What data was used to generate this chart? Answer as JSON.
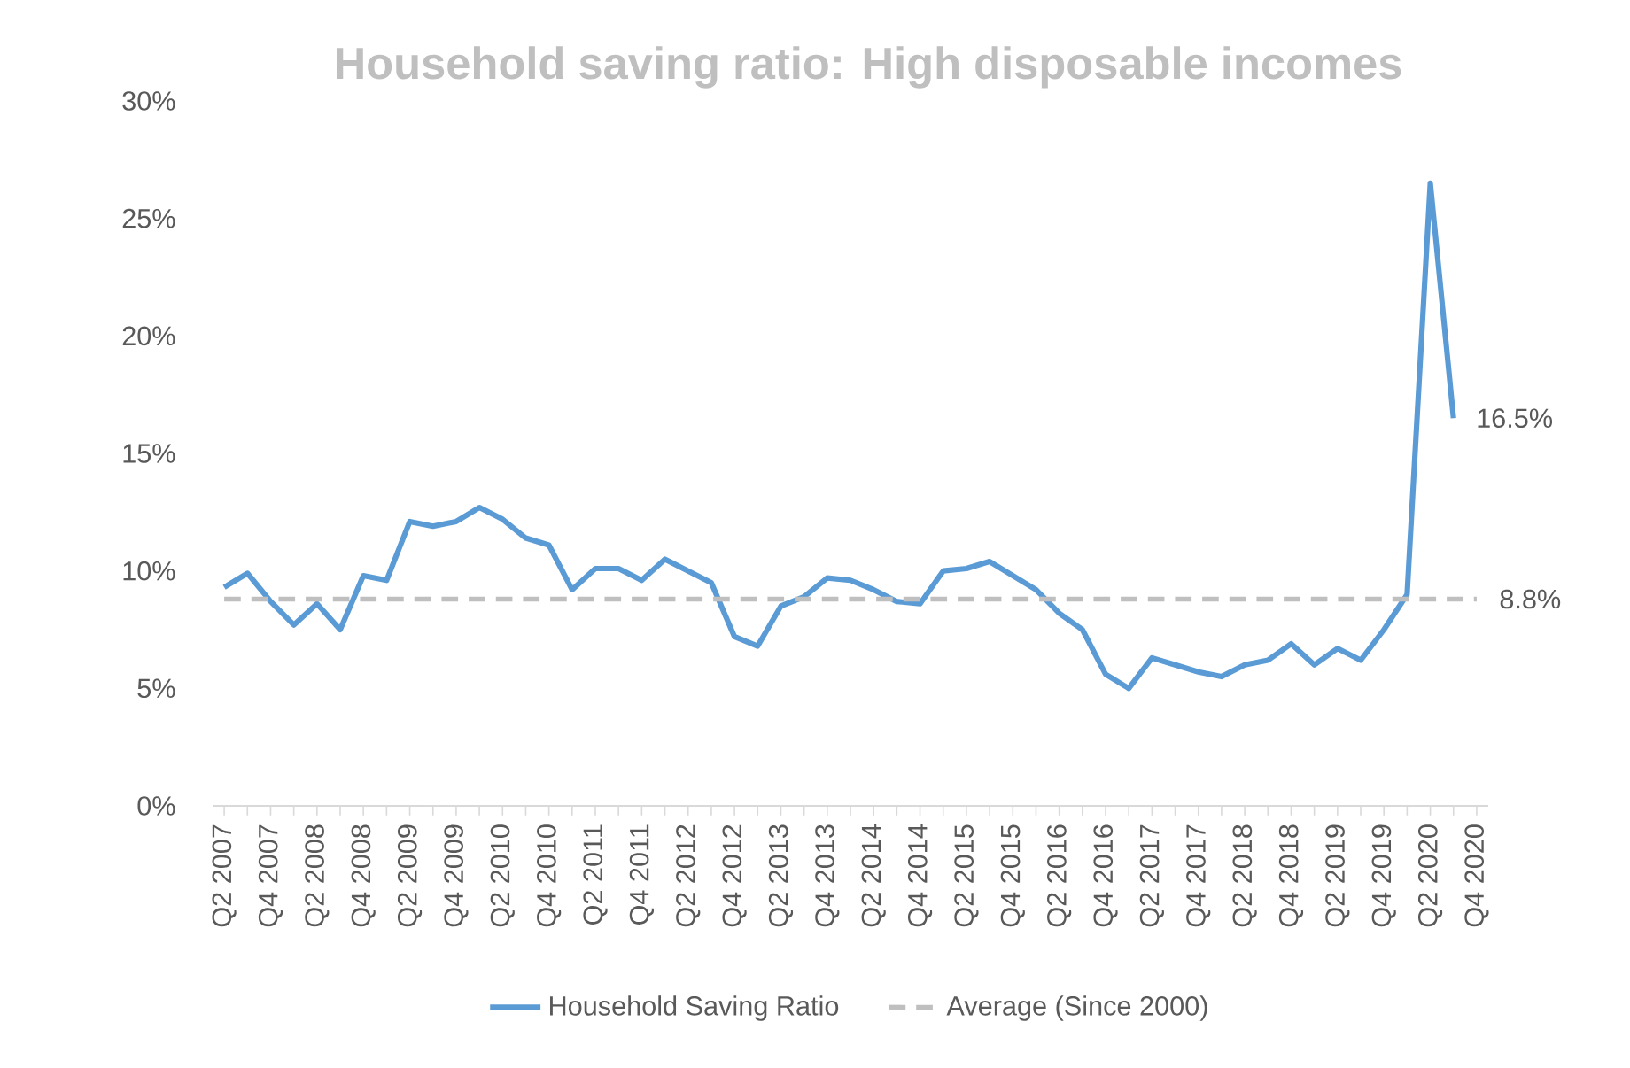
{
  "chart_data": {
    "type": "line",
    "title": "Household saving ratio: High disposable incomes",
    "categories": [
      "Q2 2007",
      null,
      "Q4 2007",
      null,
      "Q2 2008",
      null,
      "Q4 2008",
      null,
      "Q2 2009",
      null,
      "Q4 2009",
      null,
      "Q2 2010",
      null,
      "Q4 2010",
      null,
      "Q2 2011",
      null,
      "Q4 2011",
      null,
      "Q2 2012",
      null,
      "Q4 2012",
      null,
      "Q2 2013",
      null,
      "Q4 2013",
      null,
      "Q2 2014",
      null,
      "Q4 2014",
      null,
      "Q2 2015",
      null,
      "Q4 2015",
      null,
      "Q2 2016",
      null,
      "Q4 2016",
      null,
      "Q2 2017",
      null,
      "Q4 2017",
      null,
      "Q2 2018",
      null,
      "Q4 2018",
      null,
      "Q2 2019",
      null,
      "Q4 2019",
      null,
      "Q2 2020",
      null,
      "Q4 2020"
    ],
    "series": [
      {
        "name": "Household Saving Ratio",
        "color": "#5b9bd5",
        "line_style": "solid",
        "values": [
          9.3,
          9.9,
          8.7,
          7.7,
          8.6,
          7.5,
          9.8,
          9.6,
          12.1,
          11.9,
          12.1,
          12.7,
          12.2,
          11.4,
          11.1,
          9.2,
          10.1,
          10.1,
          9.6,
          10.5,
          10.0,
          9.5,
          7.2,
          6.8,
          8.5,
          8.9,
          9.7,
          9.6,
          9.2,
          8.7,
          8.6,
          10.0,
          10.1,
          10.4,
          9.8,
          9.2,
          8.2,
          7.5,
          5.6,
          5.0,
          6.3,
          6.0,
          5.7,
          5.5,
          6.0,
          6.2,
          6.9,
          6.0,
          6.7,
          6.2,
          7.5,
          9.0,
          26.5,
          16.5,
          null
        ],
        "value_labels": [
          null,
          null,
          null,
          null,
          null,
          null,
          null,
          null,
          null,
          null,
          null,
          null,
          null,
          null,
          null,
          null,
          null,
          null,
          null,
          null,
          null,
          null,
          null,
          null,
          null,
          null,
          null,
          null,
          null,
          null,
          null,
          null,
          null,
          null,
          null,
          null,
          null,
          null,
          null,
          null,
          null,
          null,
          null,
          null,
          null,
          null,
          null,
          null,
          null,
          null,
          null,
          null,
          null,
          "16.5%",
          null
        ]
      },
      {
        "name": "Average (Since 2000)",
        "color": "#bfbfbf",
        "line_style": "dashed",
        "values": [
          8.8,
          8.8,
          8.8,
          8.8,
          8.8,
          8.8,
          8.8,
          8.8,
          8.8,
          8.8,
          8.8,
          8.8,
          8.8,
          8.8,
          8.8,
          8.8,
          8.8,
          8.8,
          8.8,
          8.8,
          8.8,
          8.8,
          8.8,
          8.8,
          8.8,
          8.8,
          8.8,
          8.8,
          8.8,
          8.8,
          8.8,
          8.8,
          8.8,
          8.8,
          8.8,
          8.8,
          8.8,
          8.8,
          8.8,
          8.8,
          8.8,
          8.8,
          8.8,
          8.8,
          8.8,
          8.8,
          8.8,
          8.8,
          8.8,
          8.8,
          8.8,
          8.8,
          8.8,
          8.8,
          8.8
        ],
        "value_labels": [
          null,
          null,
          null,
          null,
          null,
          null,
          null,
          null,
          null,
          null,
          null,
          null,
          null,
          null,
          null,
          null,
          null,
          null,
          null,
          null,
          null,
          null,
          null,
          null,
          null,
          null,
          null,
          null,
          null,
          null,
          null,
          null,
          null,
          null,
          null,
          null,
          null,
          null,
          null,
          null,
          null,
          null,
          null,
          null,
          null,
          null,
          null,
          null,
          null,
          null,
          null,
          null,
          null,
          null,
          "8.8%"
        ]
      }
    ],
    "ylim": [
      0,
      30
    ],
    "yticks": [
      {
        "value": 0,
        "label": "0%"
      },
      {
        "value": 5,
        "label": "5%"
      },
      {
        "value": 10,
        "label": "10%"
      },
      {
        "value": 15,
        "label": "15%"
      },
      {
        "value": 20,
        "label": "20%"
      },
      {
        "value": 25,
        "label": "25%"
      },
      {
        "value": 30,
        "label": "30%"
      }
    ],
    "grid": false,
    "legend": "bottom"
  }
}
